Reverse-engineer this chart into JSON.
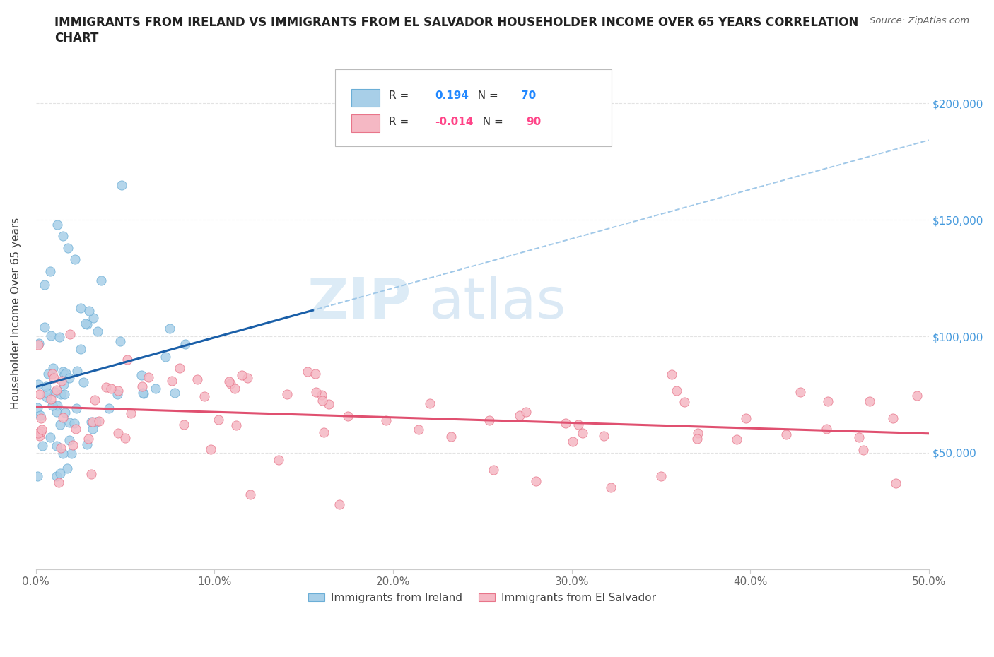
{
  "title_line1": "IMMIGRANTS FROM IRELAND VS IMMIGRANTS FROM EL SALVADOR HOUSEHOLDER INCOME OVER 65 YEARS CORRELATION",
  "title_line2": "CHART",
  "source": "Source: ZipAtlas.com",
  "ylabel": "Householder Income Over 65 years",
  "ireland_color": "#a8cfe8",
  "ireland_edge": "#6baed6",
  "salvador_color": "#f5b8c4",
  "salvador_edge": "#e8758a",
  "ireland_line_color": "#1a5fa8",
  "ireland_dash_color": "#a0c8e8",
  "salvador_line_color": "#e05070",
  "ireland_R": 0.194,
  "ireland_N": 70,
  "salvador_R": -0.014,
  "salvador_N": 90,
  "r_label_color_ireland": "#2288ff",
  "n_label_color_ireland": "#2288ff",
  "r_label_color_salvador": "#ff4488",
  "n_label_color_salvador": "#ff4488",
  "xlim": [
    0.0,
    0.5
  ],
  "ylim": [
    0,
    220000
  ],
  "ytick_values": [
    50000,
    100000,
    150000,
    200000
  ],
  "ytick_labels": [
    "$50,000",
    "$100,000",
    "$150,000",
    "$200,000"
  ],
  "xtick_values": [
    0.0,
    0.1,
    0.2,
    0.3,
    0.4,
    0.5
  ],
  "xtick_labels": [
    "0.0%",
    "10.0%",
    "20.0%",
    "30.0%",
    "40.0%",
    "50.0%"
  ],
  "watermark_zip_color": "#c5dff0",
  "watermark_atlas_color": "#b8d5ec"
}
